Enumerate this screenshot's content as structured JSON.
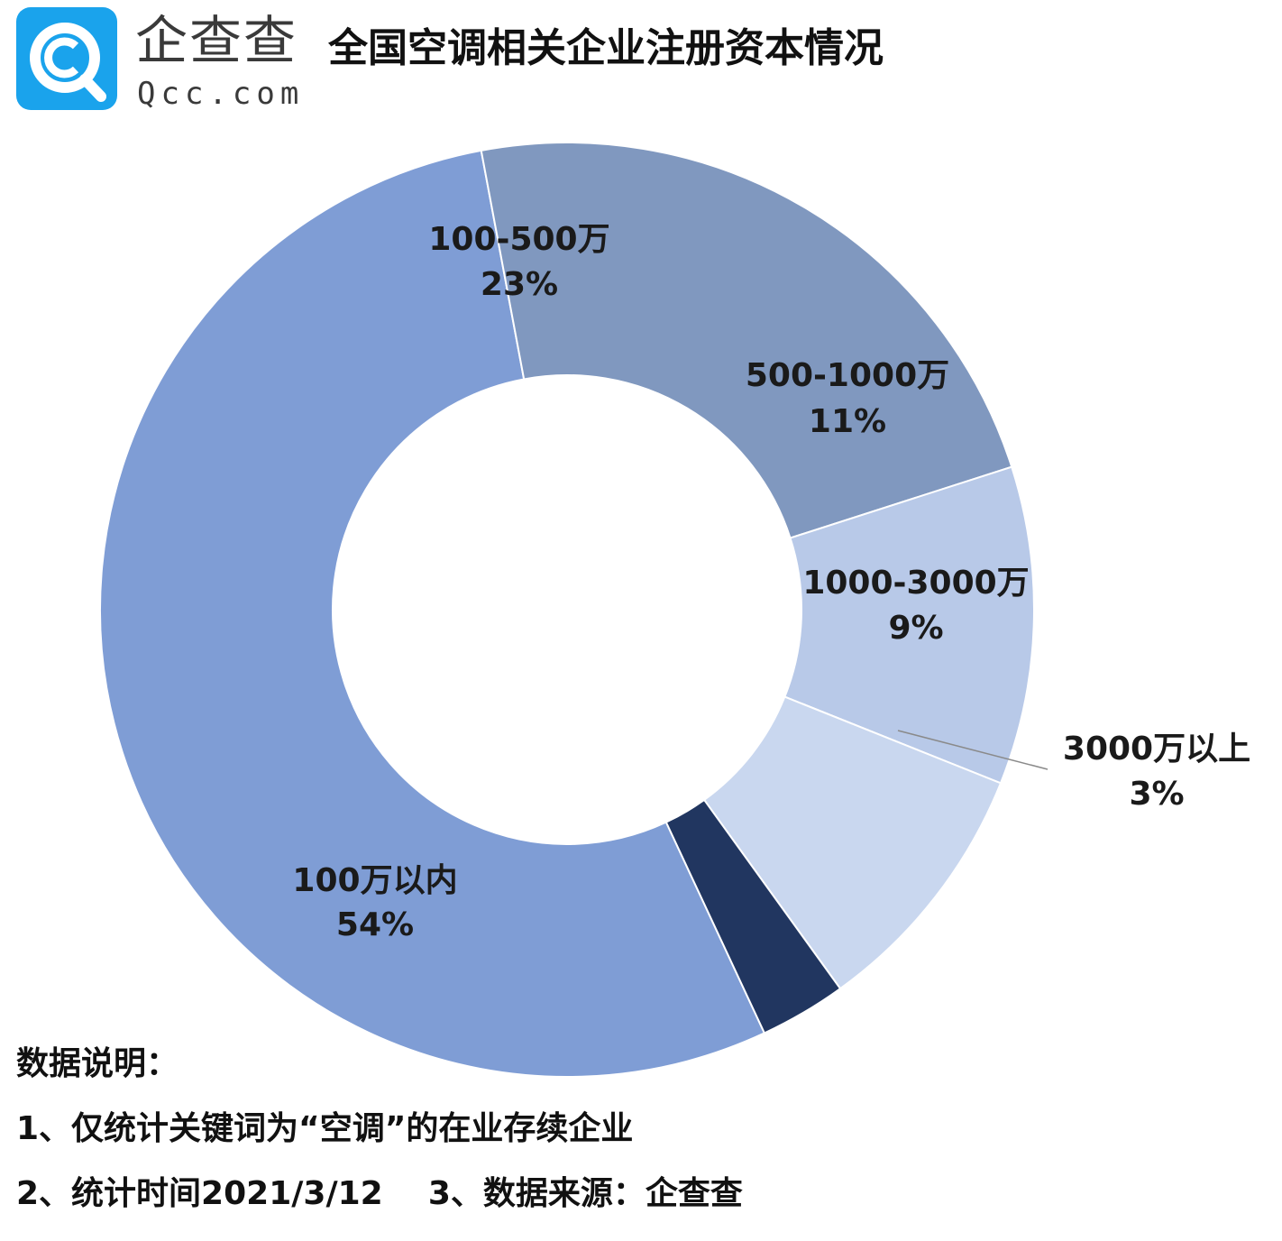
{
  "header": {
    "brand_name": "企查查",
    "brand_domain": "Qcc.com",
    "title": "全国空调相关企业注册资本情况"
  },
  "colors": {
    "logo_blue": "#1aa3ec",
    "slice_100wan_yinei": "#7f9dd5",
    "slice_100_500": "#8098bf",
    "slice_500_1000": "#b8c9e8",
    "slice_1000_3000": "#c9d7ef",
    "slice_3000_yishang": "#213660"
  },
  "chart_data": {
    "type": "pie",
    "style": "donut",
    "title": "全国空调相关企业注册资本情况",
    "categories": [
      "100万以内",
      "100-500万",
      "500-1000万",
      "1000-3000万",
      "3000万以上"
    ],
    "values": [
      54,
      23,
      11,
      9,
      3
    ],
    "value_labels": [
      "54%",
      "23%",
      "11%",
      "9%",
      "3%"
    ],
    "unit": "%"
  },
  "notes": {
    "heading": "数据说明：",
    "line1": "1、仅统计关键词为“空调”的在业存续企业",
    "line2": "2、统计时间2021/3/12    3、数据来源：企查查"
  }
}
